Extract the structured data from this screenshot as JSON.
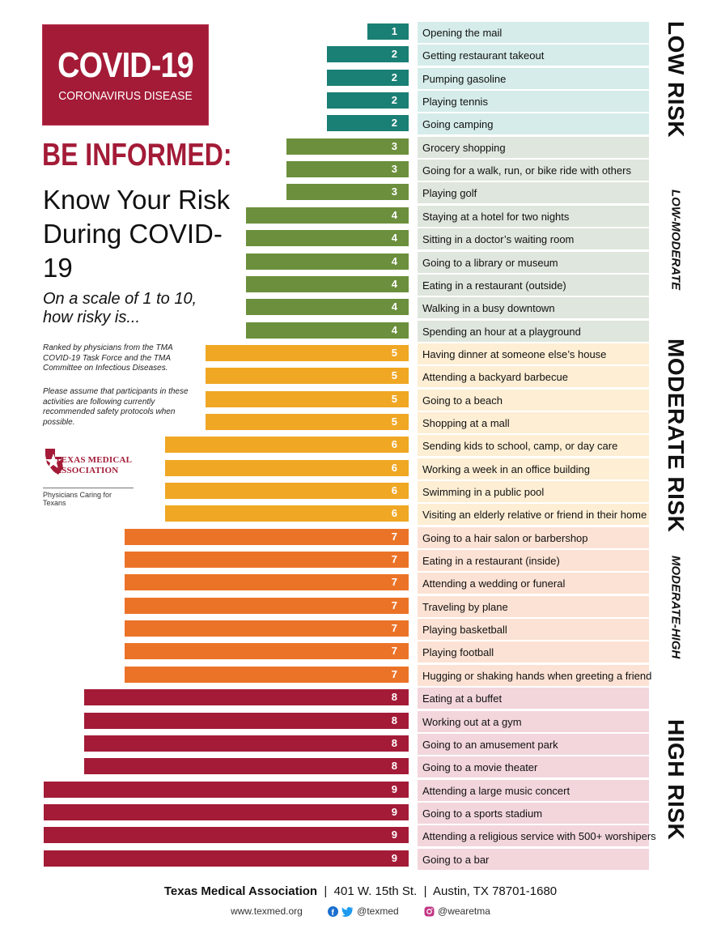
{
  "badge": {
    "title": "COVID-19",
    "subtitle": "CORONAVIRUS DISEASE"
  },
  "headline": "BE INFORMED:",
  "subhead": "Know Your Risk During COVID-19",
  "scale_question": "On a scale of 1 to 10, how risky is...",
  "notes": {
    "ranking": "Ranked by physicians from the TMA COVID-19 Task Force and the TMA Committee on Infectious Diseases.",
    "assumption": "Please assume that participants in these activities are following currently recommended safety protocols when possible."
  },
  "logo": {
    "line1": "TEXAS MEDICAL",
    "line2": "ASSOCIATION",
    "tagline": "Physicians Caring for Texans"
  },
  "colors": {
    "brand": "#a31b37",
    "score_1_2": "#1a7f74",
    "score_3_4": "#6b8f3c",
    "score_5_6": "#f0a724",
    "score_7": "#eb7328",
    "score_8_9": "#a31b37",
    "low_bg": "#d5ecea",
    "low_mod_bg": "#dfe6dd",
    "moderate_bg": "#fdeed4",
    "mod_high_bg": "#fce2d4",
    "high_bg": "#f2d6dc"
  },
  "chart_data": {
    "type": "bar",
    "title": "Know Your Risk During COVID-19",
    "scale": [
      1,
      10
    ],
    "categories": [
      "Opening the mail",
      "Getting restaurant takeout",
      "Pumping gasoline",
      "Playing tennis",
      "Going camping",
      "Grocery shopping",
      "Going for a walk, run, or bike ride with others",
      "Playing golf",
      "Staying at a hotel for two nights",
      "Sitting in a doctor’s waiting room",
      "Going to a library or museum",
      "Eating in a restaurant (outside)",
      "Walking in a busy downtown",
      "Spending an hour at a playground",
      "Having dinner at someone else’s house",
      "Attending a backyard barbecue",
      "Going to a beach",
      "Shopping at a mall",
      "Sending kids to school, camp, or day care",
      "Working a week in an office building",
      "Swimming in a public pool",
      "Visiting an elderly relative or friend in their home",
      "Going to a hair salon or barbershop",
      "Eating in a restaurant (inside)",
      "Attending a wedding or funeral",
      "Traveling by plane",
      "Playing basketball",
      "Playing football",
      "Hugging or shaking hands when greeting a friend",
      "Eating at a buffet",
      "Working out at a gym",
      "Going to an amusement park",
      "Going to a movie theater",
      "Attending a large music concert",
      "Going to a sports stadium",
      "Attending a religious service with 500+ worshipers",
      "Going to a bar"
    ],
    "values": [
      1,
      2,
      2,
      2,
      2,
      3,
      3,
      3,
      4,
      4,
      4,
      4,
      4,
      4,
      5,
      5,
      5,
      5,
      6,
      6,
      6,
      6,
      7,
      7,
      7,
      7,
      7,
      7,
      7,
      8,
      8,
      8,
      8,
      9,
      9,
      9,
      9
    ],
    "zones": [
      {
        "label": "LOW RISK",
        "from": 0,
        "to": 4,
        "size": "big",
        "bg": "low"
      },
      {
        "label": "LOW-MODERATE",
        "from": 5,
        "to": 13,
        "size": "small",
        "bg": "low_mod"
      },
      {
        "label": "MODERATE RISK",
        "from": 14,
        "to": 21,
        "size": "big",
        "bg": "moderate"
      },
      {
        "label": "MODERATE-HIGH",
        "from": 22,
        "to": 28,
        "size": "small",
        "bg": "mod_high"
      },
      {
        "label": "HIGH RISK",
        "from": 29,
        "to": 36,
        "size": "big",
        "bg": "high"
      }
    ]
  },
  "footer": {
    "org": "Texas Medical Association",
    "address": "401 W. 15th St.",
    "city": "Austin, TX 78701-1680",
    "website": "www.texmed.org",
    "twitter": "@texmed",
    "instagram": "@wearetma"
  }
}
